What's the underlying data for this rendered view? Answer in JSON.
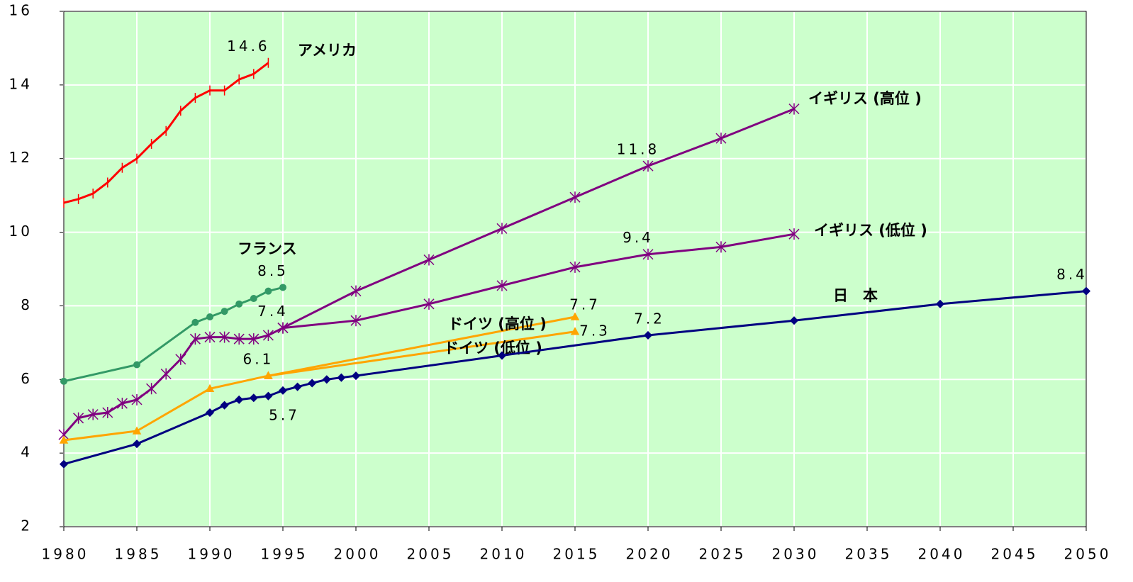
{
  "chart_data": {
    "type": "line",
    "background": "#ccffcc",
    "grid": true,
    "xlim": [
      1980,
      2050
    ],
    "xticks": [
      1980,
      1985,
      1990,
      1995,
      2000,
      2005,
      2010,
      2015,
      2020,
      2025,
      2030,
      2035,
      2040,
      2045,
      2050
    ],
    "ylim": [
      2,
      16
    ],
    "yticks": [
      2,
      4,
      6,
      8,
      10,
      12,
      14,
      16
    ],
    "series": [
      {
        "name": "アメリカ",
        "color": "#ff0000",
        "marker": "tick",
        "x": [
          1980,
          1981,
          1982,
          1983,
          1984,
          1985,
          1986,
          1987,
          1988,
          1989,
          1990,
          1991,
          1992,
          1993,
          1994
        ],
        "values": [
          10.8,
          10.9,
          11.05,
          11.35,
          11.75,
          12.0,
          12.4,
          12.75,
          13.3,
          13.65,
          13.85,
          13.85,
          14.15,
          14.3,
          14.6
        ],
        "value_labels": [
          null,
          null,
          null,
          null,
          null,
          null,
          null,
          null,
          null,
          null,
          null,
          null,
          null,
          null,
          "14.6"
        ]
      },
      {
        "name": "フランス",
        "color": "#339966",
        "marker": "circle",
        "x": [
          1980,
          1985,
          1989,
          1990,
          1991,
          1992,
          1993,
          1994,
          1995
        ],
        "values": [
          5.95,
          6.4,
          7.55,
          7.7,
          7.85,
          8.05,
          8.2,
          8.4,
          8.5
        ],
        "value_labels": [
          null,
          null,
          null,
          null,
          null,
          null,
          null,
          null,
          "8.5"
        ]
      },
      {
        "name": "イギリス (高位 )",
        "color": "#800080",
        "marker": "star",
        "x": [
          1980,
          1981,
          1982,
          1983,
          1984,
          1985,
          1986,
          1987,
          1988,
          1989,
          1990,
          1991,
          1992,
          1993,
          1994,
          1995,
          2000,
          2005,
          2010,
          2015,
          2020,
          2025,
          2030
        ],
        "values": [
          4.5,
          4.95,
          5.05,
          5.1,
          5.35,
          5.45,
          5.75,
          6.15,
          6.55,
          7.1,
          7.15,
          7.15,
          7.1,
          7.1,
          7.2,
          7.4,
          8.4,
          9.25,
          10.1,
          10.95,
          11.8,
          12.55,
          13.35
        ],
        "value_labels": [
          null,
          null,
          null,
          null,
          null,
          null,
          null,
          null,
          null,
          null,
          null,
          null,
          null,
          null,
          null,
          "7.4",
          null,
          null,
          null,
          null,
          "11.8",
          null,
          null
        ]
      },
      {
        "name": "イギリス (低位 )",
        "color": "#800080",
        "marker": "star",
        "x": [
          1995,
          2000,
          2005,
          2010,
          2015,
          2020,
          2025,
          2030
        ],
        "values": [
          7.4,
          7.6,
          8.05,
          8.55,
          9.05,
          9.4,
          9.6,
          9.95
        ],
        "value_labels": [
          null,
          null,
          null,
          null,
          null,
          "9.4",
          null,
          null
        ]
      },
      {
        "name": "ドイツ (高位 )",
        "color": "#ffa500",
        "marker": "triangle",
        "x": [
          1980,
          1985,
          1990,
          1994,
          2015
        ],
        "values": [
          4.35,
          4.6,
          5.75,
          6.1,
          7.7
        ],
        "value_labels": [
          null,
          null,
          null,
          "6.1",
          "7.7"
        ]
      },
      {
        "name": "ドイツ (低位 )",
        "color": "#ffa500",
        "marker": "triangle",
        "x": [
          1994,
          2015
        ],
        "values": [
          6.1,
          7.3
        ],
        "value_labels": [
          null,
          "7.3"
        ]
      },
      {
        "name": "日　本",
        "color": "#000080",
        "marker": "diamond",
        "x": [
          1980,
          1985,
          1990,
          1991,
          1992,
          1993,
          1994,
          1995,
          1996,
          1997,
          1998,
          1999,
          2000,
          2010,
          2020,
          2030,
          2040,
          2050
        ],
        "values": [
          3.7,
          4.25,
          5.1,
          5.3,
          5.45,
          5.5,
          5.55,
          5.7,
          5.8,
          5.9,
          6.0,
          6.05,
          6.1,
          6.65,
          7.2,
          7.6,
          8.05,
          8.4
        ],
        "value_labels": [
          null,
          null,
          null,
          null,
          null,
          null,
          null,
          "5.7",
          null,
          null,
          null,
          null,
          null,
          null,
          "7.2",
          null,
          null,
          "8.4"
        ]
      }
    ]
  }
}
